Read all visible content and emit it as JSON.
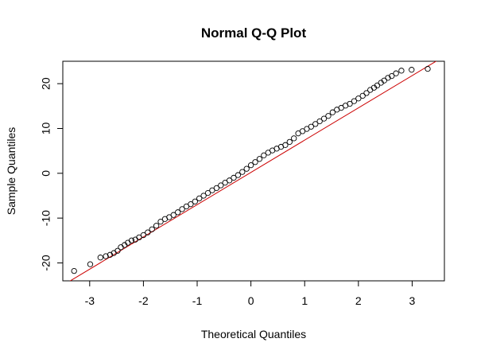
{
  "chart_data": {
    "type": "scatter",
    "title": "Normal Q-Q Plot",
    "xlabel": "Theoretical Quantiles",
    "ylabel": "Sample Quantiles",
    "xlim": [
      -3.5,
      3.6
    ],
    "ylim": [
      -24,
      25
    ],
    "xticks": [
      -3,
      -2,
      -1,
      0,
      1,
      2,
      3
    ],
    "yticks": [
      -20,
      -10,
      0,
      10,
      20
    ],
    "grid": false,
    "legend": "none",
    "reference_line": {
      "intercept": 0.2,
      "slope": 7.2,
      "color": "#cc0000"
    },
    "point_color": "#000000",
    "x": [
      -3.29,
      -2.99,
      -2.8,
      -2.7,
      -2.62,
      -2.55,
      -2.48,
      -2.42,
      -2.35,
      -2.29,
      -2.22,
      -2.15,
      -2.08,
      -2.0,
      -1.92,
      -1.84,
      -1.76,
      -1.68,
      -1.6,
      -1.52,
      -1.44,
      -1.36,
      -1.28,
      -1.2,
      -1.12,
      -1.04,
      -0.96,
      -0.88,
      -0.8,
      -0.72,
      -0.64,
      -0.56,
      -0.48,
      -0.4,
      -0.32,
      -0.24,
      -0.16,
      -0.08,
      0.0,
      0.08,
      0.16,
      0.24,
      0.32,
      0.4,
      0.48,
      0.56,
      0.64,
      0.72,
      0.8,
      0.88,
      0.96,
      1.04,
      1.12,
      1.2,
      1.28,
      1.36,
      1.44,
      1.52,
      1.6,
      1.68,
      1.76,
      1.84,
      1.92,
      2.0,
      2.08,
      2.15,
      2.22,
      2.29,
      2.35,
      2.42,
      2.48,
      2.55,
      2.62,
      2.7,
      2.8,
      2.99,
      3.29
    ],
    "y": [
      -21.8,
      -20.3,
      -18.8,
      -18.5,
      -18.2,
      -17.8,
      -17.3,
      -16.5,
      -16.0,
      -15.5,
      -15.0,
      -14.8,
      -14.3,
      -13.8,
      -13.2,
      -12.5,
      -11.7,
      -10.8,
      -10.2,
      -9.8,
      -9.3,
      -8.7,
      -8.0,
      -7.4,
      -6.9,
      -6.3,
      -5.6,
      -5.0,
      -4.4,
      -3.8,
      -3.3,
      -2.7,
      -2.1,
      -1.6,
      -1.0,
      -0.4,
      0.3,
      1.0,
      1.8,
      2.5,
      3.2,
      4.0,
      4.6,
      5.1,
      5.5,
      5.9,
      6.3,
      7.0,
      7.8,
      8.9,
      9.4,
      9.9,
      10.4,
      11.0,
      11.6,
      12.2,
      12.8,
      13.6,
      14.2,
      14.6,
      15.1,
      15.5,
      16.1,
      16.7,
      17.3,
      17.9,
      18.6,
      19.1,
      19.6,
      20.2,
      20.7,
      21.3,
      21.7,
      22.3,
      22.9,
      23.1,
      23.3
    ]
  }
}
